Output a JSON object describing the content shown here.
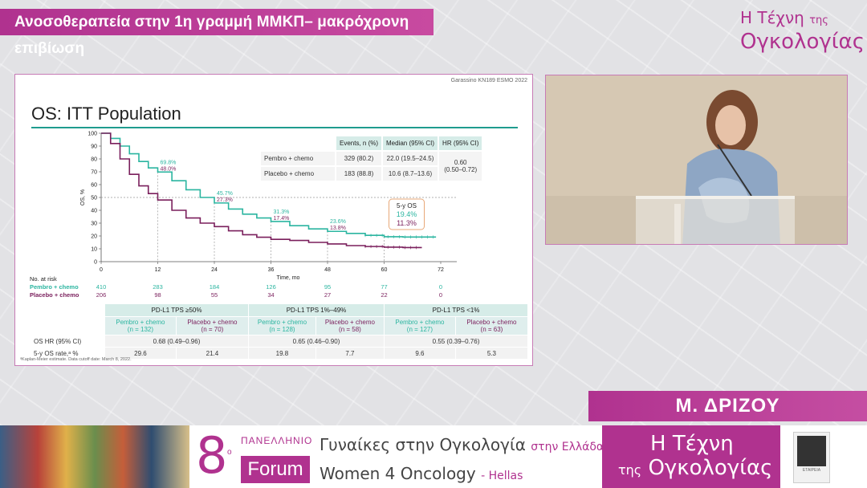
{
  "header": {
    "title": "Ανοσοθεραπεία στην 1η γραμμή ΜΜΚΠ– μακρόχρονη επιβίωση",
    "brand_line1": "Η Τέχνη",
    "brand_line1_small": "της",
    "brand_line2": "Ογκολογίας"
  },
  "colors": {
    "accent": "#b0328f",
    "teal": "#2bb5a0",
    "maroon": "#7a1f5c"
  },
  "slide": {
    "reference": "Garassino KN189 ESMO 2022",
    "title": "OS: ITT Population",
    "events_table": {
      "headers": [
        "",
        "Events, n (%)",
        "Median (95% CI)",
        "HR (95% CI)"
      ],
      "rows": [
        {
          "label": "Pembro + chemo",
          "events": "329 (80.2)",
          "median": "22.0 (19.5–24.5)"
        },
        {
          "label": "Placebo + chemo",
          "events": "183 (88.8)",
          "median": "10.6 (8.7–13.6)"
        }
      ],
      "hr": "0.60",
      "hr_ci": "(0.50–0.72)"
    },
    "annotations": {
      "t12": {
        "pembro": "69.8%",
        "placebo": "48.0%"
      },
      "t24": {
        "pembro": "45.7%",
        "placebo": "27.3%"
      },
      "t36": {
        "pembro": "31.3%",
        "placebo": "17.4%"
      },
      "t48": {
        "pembro": "23.6%",
        "placebo": "13.8%"
      },
      "five_year_title": "5-y OS",
      "five_year_pembro": "19.4%",
      "five_year_placebo": "11.3%"
    },
    "at_risk": {
      "title": "No. at risk",
      "pembro_label": "Pembro + chemo",
      "placebo_label": "Placebo + chemo",
      "pembro": [
        "410",
        "283",
        "184",
        "126",
        "95",
        "77",
        "0"
      ],
      "placebo": [
        "206",
        "98",
        "55",
        "34",
        "27",
        "22",
        "0"
      ]
    },
    "tps_table": {
      "groups": [
        "PD-L1 TPS ≥50%",
        "PD-L1 TPS 1%–49%",
        "PD-L1 TPS <1%"
      ],
      "subheaders": [
        [
          "Pembro + chemo",
          "(n = 132)"
        ],
        [
          "Placebo + chemo",
          "(n = 70)"
        ],
        [
          "Pembro + chemo",
          "(n = 128)"
        ],
        [
          "Placebo + chemo",
          "(n = 58)"
        ],
        [
          "Pembro + chemo",
          "(n = 127)"
        ],
        [
          "Placebo + chemo",
          "(n = 63)"
        ]
      ],
      "hr_label": "OS HR (95% CI)",
      "hr_values": [
        "0.68 (0.49–0.96)",
        "0.65 (0.46–0.90)",
        "0.55 (0.39–0.76)"
      ],
      "rate_label": "5-y OS rate,ᵃ %",
      "rate_values": [
        "29.6",
        "21.4",
        "19.8",
        "7.7",
        "9.6",
        "5.3"
      ]
    },
    "footnote": "ᵃKaplan-Meier estimate.  Data cutoff date: March 8, 2022."
  },
  "chart_data": {
    "type": "line",
    "xlabel": "Time, mo",
    "ylabel": "OS, %",
    "xlim": [
      0,
      72
    ],
    "ylim": [
      0,
      100
    ],
    "xticks": [
      0,
      12,
      24,
      36,
      48,
      60,
      72
    ],
    "yticks": [
      0,
      10,
      20,
      30,
      40,
      50,
      60,
      70,
      80,
      90,
      100
    ],
    "series": [
      {
        "name": "Pembro + chemo",
        "color": "#2bb5a0",
        "x": [
          0,
          2,
          4,
          6,
          8,
          10,
          12,
          15,
          18,
          21,
          24,
          27,
          30,
          33,
          36,
          40,
          44,
          48,
          52,
          56,
          60,
          64,
          68,
          71
        ],
        "y": [
          100,
          96,
          90,
          84,
          78,
          73,
          69.8,
          63,
          56,
          50,
          45.7,
          41,
          37,
          34,
          31.3,
          28,
          25.5,
          23.6,
          22,
          20.5,
          19.4,
          19.2,
          19.2,
          19.2
        ]
      },
      {
        "name": "Placebo + chemo",
        "color": "#7a1f5c",
        "x": [
          0,
          2,
          4,
          6,
          8,
          10,
          12,
          15,
          18,
          21,
          24,
          27,
          30,
          33,
          36,
          40,
          44,
          48,
          52,
          56,
          60,
          64,
          68
        ],
        "y": [
          100,
          92,
          80,
          68,
          59,
          53,
          48,
          40,
          34,
          30,
          27.3,
          24,
          21,
          19,
          17.4,
          16.5,
          15,
          13.8,
          12.5,
          11.8,
          11.3,
          11,
          11
        ]
      }
    ]
  },
  "speaker": {
    "name": "Μ. ΔΡΙΖΟΥ"
  },
  "footer": {
    "number": "8",
    "ordinal": "ο",
    "panhellenic": "ΠΑΝΕΛΛΗΝΙΟ",
    "forum": "Forum",
    "line1": "Γυναίκες στην Ογκολογία",
    "line1_tail": "στην Ελλάδα",
    "line2": "Women 4 Oncology",
    "line2_tail": "- Hellas",
    "brand_a": "Η Τέχνη",
    "brand_a_small": "",
    "brand_b_small": "της",
    "brand_b": "Ογκολογίας",
    "logo_caption": "ΕΤΑΙΡΕΙΑ"
  }
}
